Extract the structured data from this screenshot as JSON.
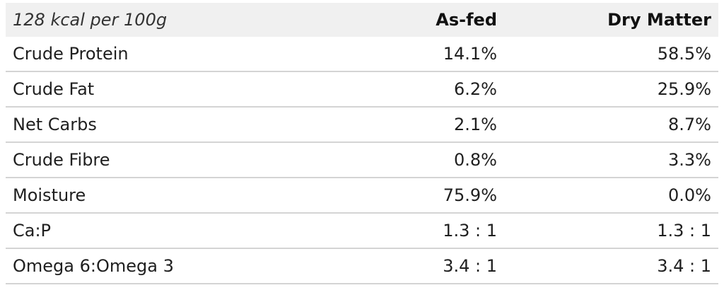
{
  "table": {
    "header": {
      "label": "128 kcal per 100g",
      "as_fed": "As-fed",
      "dry_matter": "Dry Matter"
    },
    "rows": [
      {
        "label": "Crude Protein",
        "as_fed": "14.1%",
        "dry_matter": "58.5%"
      },
      {
        "label": "Crude Fat",
        "as_fed": "6.2%",
        "dry_matter": "25.9%"
      },
      {
        "label": "Net Carbs",
        "as_fed": "2.1%",
        "dry_matter": "8.7%"
      },
      {
        "label": "Crude Fibre",
        "as_fed": "0.8%",
        "dry_matter": "3.3%"
      },
      {
        "label": "Moisture",
        "as_fed": "75.9%",
        "dry_matter": "0.0%"
      },
      {
        "label": "Ca:P",
        "as_fed": "1.3 : 1",
        "dry_matter": "1.3 : 1"
      },
      {
        "label": "Omega 6:Omega 3",
        "as_fed": "3.4 : 1",
        "dry_matter": "3.4 : 1"
      }
    ]
  },
  "colors": {
    "header_background": "#f0f0f0",
    "row_divider": "#d4d4d4",
    "text": "#1f1f1f"
  }
}
